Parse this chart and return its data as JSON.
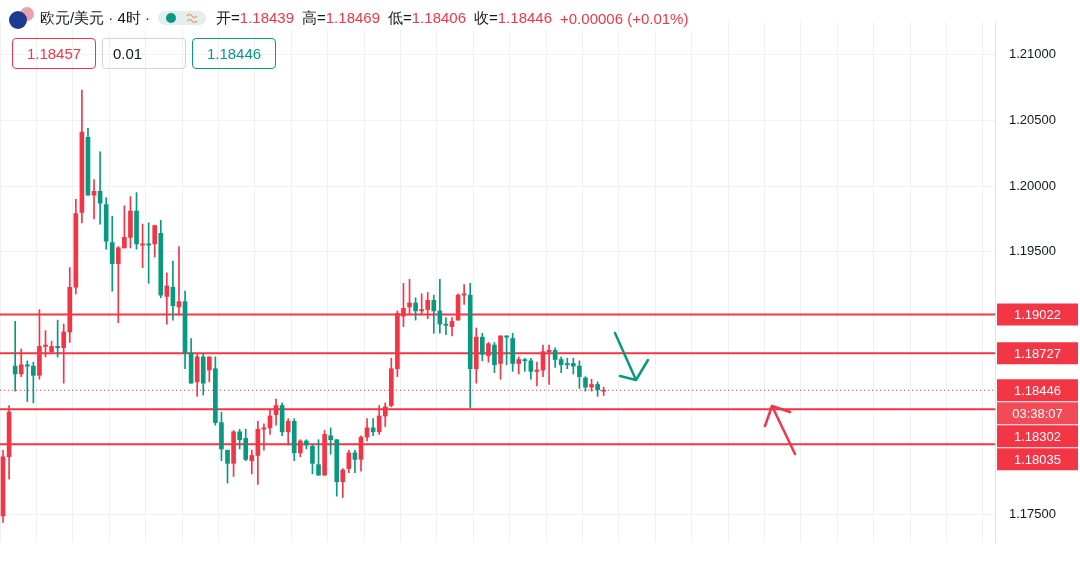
{
  "chart_data": {
    "type": "candlestick",
    "title": "欧元/美元 · 4时 ·",
    "categories": [
      null,
      null,
      null,
      null,
      null,
      null,
      null,
      null,
      null,
      null,
      null,
      null,
      null,
      null,
      null,
      null,
      null,
      null,
      null,
      null,
      null,
      null,
      null,
      null,
      null,
      null,
      null,
      null,
      null,
      null,
      null,
      null,
      null,
      null,
      null,
      null,
      null,
      null,
      null,
      null,
      null,
      null,
      null,
      null,
      null,
      null,
      null,
      null,
      null,
      null,
      null,
      null,
      null,
      null,
      null,
      null,
      null,
      null,
      null,
      null,
      null,
      null,
      null,
      null,
      null,
      null,
      null,
      null,
      null,
      null,
      null,
      null,
      null,
      null,
      null,
      null,
      null,
      null,
      null,
      null,
      null,
      null,
      null,
      null,
      null,
      null,
      null,
      null,
      null,
      null,
      null,
      null,
      null,
      null,
      null,
      null,
      null,
      null,
      null,
      null,
      null,
      null,
      null,
      null,
      null,
      null,
      null,
      null,
      null,
      null,
      null,
      null,
      null,
      null,
      null,
      null,
      null,
      null,
      null,
      null,
      null,
      null,
      null,
      null,
      null,
      null,
      null,
      null,
      null,
      null,
      null,
      null,
      null,
      null,
      null,
      null,
      null,
      null,
      null,
      null,
      null,
      null,
      null,
      null,
      null,
      null,
      null,
      null,
      null,
      null,
      null,
      null,
      null,
      null,
      null,
      null,
      null,
      null,
      null,
      null,
      null,
      null,
      null,
      null
    ],
    "ohlc": [
      [
        1.1749,
        1.1799,
        1.1744,
        1.1794
      ],
      [
        1.1794,
        1.1833,
        1.1777,
        1.1828
      ],
      [
        1.1863,
        1.1897,
        1.1844,
        1.1857
      ],
      [
        1.1857,
        1.1876,
        1.1855,
        1.1864
      ],
      [
        1.1864,
        1.1867,
        1.1836,
        1.1863
      ],
      [
        1.1863,
        1.1866,
        1.1835,
        1.1856
      ],
      [
        1.1856,
        1.1906,
        1.1853,
        1.1878
      ],
      [
        1.1878,
        1.189,
        1.187,
        1.1879
      ],
      [
        1.1874,
        1.1882,
        1.1873,
        1.1878
      ],
      [
        1.1878,
        1.1898,
        1.187,
        1.1877
      ],
      [
        1.1877,
        1.1895,
        1.185,
        1.1889
      ],
      [
        1.1889,
        1.1938,
        1.1881,
        1.1923
      ],
      [
        1.1923,
        1.199,
        1.1918,
        1.1979
      ],
      [
        1.198,
        1.2073,
        1.1972,
        1.2041
      ],
      [
        1.2037,
        1.2044,
        1.1993,
        1.1993
      ],
      [
        1.1993,
        1.2005,
        1.1975,
        1.1996
      ],
      [
        1.1996,
        1.2026,
        1.1971,
        1.1987
      ],
      [
        1.1986,
        1.1991,
        1.1952,
        1.1958
      ],
      [
        1.1957,
        1.1977,
        1.192,
        1.1941
      ],
      [
        1.1941,
        1.1954,
        1.1896,
        1.1953
      ],
      [
        1.1953,
        1.1985,
        1.1953,
        1.1961
      ],
      [
        1.1961,
        1.1992,
        1.1953,
        1.1981
      ],
      [
        1.1981,
        1.1995,
        1.1952,
        1.1956
      ],
      [
        1.1955,
        1.1971,
        1.1938,
        1.1956
      ],
      [
        1.1956,
        1.1972,
        1.1926,
        1.1955
      ],
      [
        1.1956,
        1.197,
        1.1946,
        1.197
      ],
      [
        1.1964,
        1.1974,
        1.1915,
        1.1917
      ],
      [
        1.1916,
        1.1934,
        1.1895,
        1.1924
      ],
      [
        1.1923,
        1.1943,
        1.1898,
        1.1909
      ],
      [
        1.1908,
        1.1954,
        1.1902,
        1.1912
      ],
      [
        1.1912,
        1.192,
        1.1861,
        1.1873
      ],
      [
        1.1873,
        1.1884,
        1.185,
        1.185
      ],
      [
        1.1851,
        1.1872,
        1.184,
        1.187
      ],
      [
        1.187,
        1.1872,
        1.1841,
        1.185
      ],
      [
        1.186,
        1.187,
        1.1851,
        1.187
      ],
      [
        1.1861,
        1.187,
        1.1818,
        1.182
      ],
      [
        1.182,
        1.1828,
        1.1791,
        1.18
      ],
      [
        1.1799,
        1.1799,
        1.1774,
        1.1789
      ],
      [
        1.1789,
        1.1814,
        1.1779,
        1.1813
      ],
      [
        1.1813,
        1.1815,
        1.18,
        1.1807
      ],
      [
        1.1808,
        1.1815,
        1.1791,
        1.1792
      ],
      [
        1.1791,
        1.1799,
        1.1781,
        1.1795
      ],
      [
        1.1795,
        1.1821,
        1.1773,
        1.1815
      ],
      [
        1.1815,
        1.1819,
        1.1799,
        1.1816
      ],
      [
        1.1816,
        1.183,
        1.1811,
        1.1825
      ],
      [
        1.1826,
        1.1838,
        1.1818,
        1.1833
      ],
      [
        1.1833,
        1.1835,
        1.181,
        1.1813
      ],
      [
        1.1813,
        1.1823,
        1.1803,
        1.1821
      ],
      [
        1.1821,
        1.1823,
        1.1791,
        1.1797
      ],
      [
        1.1797,
        1.1807,
        1.1794,
        1.1806
      ],
      [
        1.1806,
        1.1807,
        1.18,
        1.1803
      ],
      [
        1.1802,
        1.1803,
        1.1781,
        1.1789
      ],
      [
        1.1788,
        1.1807,
        1.178,
        1.178
      ],
      [
        1.178,
        1.1814,
        1.178,
        1.1811
      ],
      [
        1.181,
        1.1816,
        1.1796,
        1.1807
      ],
      [
        1.1807,
        1.1807,
        1.1764,
        1.1775
      ],
      [
        1.1775,
        1.1785,
        1.1763,
        1.1784
      ],
      [
        1.1785,
        1.1799,
        1.1782,
        1.1797
      ],
      [
        1.1797,
        1.1799,
        1.1782,
        1.1792
      ],
      [
        1.1792,
        1.181,
        1.1783,
        1.1809
      ],
      [
        1.1809,
        1.1823,
        1.1806,
        1.1816
      ],
      [
        1.1816,
        1.1823,
        1.181,
        1.1813
      ],
      [
        1.1813,
        1.1833,
        1.1811,
        1.1825
      ],
      [
        1.1825,
        1.1835,
        1.1817,
        1.1832
      ],
      [
        1.1833,
        1.1869,
        1.1832,
        1.1861
      ],
      [
        1.1861,
        1.1905,
        1.1855,
        1.1903
      ],
      [
        1.1901,
        1.1926,
        1.1893,
        1.1907
      ],
      [
        1.1908,
        1.1929,
        1.1902,
        1.1911
      ],
      [
        1.1911,
        1.1915,
        1.1898,
        1.1905
      ],
      [
        1.1905,
        1.1918,
        1.1902,
        1.1906
      ],
      [
        1.1906,
        1.1919,
        1.1899,
        1.1913
      ],
      [
        1.1913,
        1.1917,
        1.1888,
        1.1905
      ],
      [
        1.1905,
        1.1929,
        1.1888,
        1.1895
      ],
      [
        1.1895,
        1.19,
        1.1887,
        1.1894
      ],
      [
        1.1893,
        1.19,
        1.1886,
        1.1897
      ],
      [
        1.1898,
        1.1918,
        1.1898,
        1.1917
      ],
      [
        1.1917,
        1.1925,
        1.191,
        1.1918
      ],
      [
        1.1917,
        1.1926,
        1.1831,
        1.1861
      ],
      [
        1.1861,
        1.1892,
        1.185,
        1.1885
      ],
      [
        1.1885,
        1.1888,
        1.1867,
        1.1872
      ],
      [
        1.1871,
        1.1881,
        1.1866,
        1.188
      ],
      [
        1.1879,
        1.1881,
        1.1858,
        1.1864
      ],
      [
        1.1865,
        1.1886,
        1.1853,
        1.1886
      ],
      [
        1.1886,
        1.1886,
        1.1864,
        1.1885
      ],
      [
        1.1884,
        1.1888,
        1.1859,
        1.1865
      ],
      [
        1.1865,
        1.187,
        1.1857,
        1.1868
      ],
      [
        1.1868,
        1.1869,
        1.1859,
        1.1867
      ],
      [
        1.1867,
        1.1869,
        1.1853,
        1.1859
      ],
      [
        1.1859,
        1.1866,
        1.1848,
        1.186
      ],
      [
        1.186,
        1.1879,
        1.1855,
        1.1874
      ],
      [
        1.1874,
        1.1879,
        1.1849,
        1.1875
      ],
      [
        1.1875,
        1.1877,
        1.1862,
        1.1868
      ],
      [
        1.1868,
        1.187,
        1.1858,
        1.1864
      ],
      [
        1.1865,
        1.1869,
        1.1861,
        1.1864
      ],
      [
        1.1865,
        1.1869,
        1.1857,
        1.1863
      ],
      [
        1.1863,
        1.1867,
        1.1846,
        1.1855
      ],
      [
        1.1854,
        1.1855,
        1.1844,
        1.1847
      ],
      [
        1.1847,
        1.1853,
        1.1844,
        1.1849
      ],
      [
        1.1849,
        1.1851,
        1.184,
        1.1845
      ],
      [
        1.18439,
        1.18469,
        1.18406,
        1.18446
      ],
      null,
      null,
      null,
      null,
      null,
      null,
      null,
      null,
      null,
      null,
      null,
      null,
      null,
      null,
      null,
      null,
      null,
      null,
      null,
      null,
      null,
      null,
      null,
      null,
      null,
      null,
      null,
      null,
      null,
      null,
      null,
      null,
      null,
      null,
      null,
      null,
      null,
      null,
      null,
      null,
      null,
      null,
      null,
      null,
      null,
      null,
      null,
      null,
      null,
      null,
      null,
      null,
      null,
      null,
      null,
      null,
      null,
      null,
      null,
      null,
      null,
      null,
      null,
      null
    ],
    "colors": [
      "#f23645",
      "#f23645",
      "#089981",
      "#f23645",
      "#089981",
      "#089981",
      "#f23645",
      "#f23645",
      "#f23645",
      "#089981",
      "#f23645",
      "#f23645",
      "#f23645",
      "#f23645",
      "#089981",
      "#f23645",
      "#089981",
      "#089981",
      "#089981",
      "#f23645",
      "#f23645",
      "#f23645",
      "#089981",
      "#f23645",
      "#089981",
      "#f23645",
      "#089981",
      "#f23645",
      "#089981",
      "#f23645",
      "#089981",
      "#089981",
      "#f23645",
      "#089981",
      "#f23645",
      "#089981",
      "#089981",
      "#089981",
      "#f23645",
      "#089981",
      "#089981",
      "#f23645",
      "#f23645",
      "#f23645",
      "#f23645",
      "#f23645",
      "#089981",
      "#f23645",
      "#089981",
      "#f23645",
      "#089981",
      "#089981",
      "#089981",
      "#f23645",
      "#089981",
      "#089981",
      "#f23645",
      "#f23645",
      "#089981",
      "#f23645",
      "#f23645",
      "#089981",
      "#f23645",
      "#f23645",
      "#f23645",
      "#f23645",
      "#f23645",
      "#f23645",
      "#089981",
      "#f23645",
      "#f23645",
      "#089981",
      "#089981",
      "#089981",
      "#f23645",
      "#f23645",
      "#f23645",
      "#089981",
      "#f23645",
      "#089981",
      "#f23645",
      "#089981",
      "#f23645",
      "#089981",
      "#089981",
      "#f23645",
      "#089981",
      "#089981",
      "#f23645",
      "#f23645",
      "#f23645",
      "#089981",
      "#089981",
      "#089981",
      "#089981",
      "#089981",
      "#089981",
      "#f23645",
      "#089981",
      "#f23645",
      null,
      null,
      null,
      null,
      null,
      null,
      null,
      null,
      null,
      null,
      null,
      null,
      null,
      null,
      null,
      null,
      null,
      null,
      null,
      null,
      null,
      null,
      null,
      null,
      null,
      null,
      null,
      null,
      null,
      null,
      null,
      null,
      null,
      null,
      null,
      null,
      null,
      null,
      null,
      null,
      null,
      null,
      null,
      null,
      null,
      null,
      null,
      null,
      null,
      null,
      null,
      null,
      null,
      null,
      null,
      null,
      null,
      null,
      null,
      null,
      null,
      null,
      null,
      null
    ],
    "ylim": [
      1.1729,
      1.2125
    ],
    "yticks": [
      {
        "value": 1.175,
        "label": "1.17500"
      },
      {
        "value": 1.195,
        "label": "1.19500"
      },
      {
        "value": 1.2,
        "label": "1.20000"
      },
      {
        "value": 1.205,
        "label": "1.20500"
      },
      {
        "value": 1.21,
        "label": "1.21000"
      }
    ],
    "tick_labels": "y",
    "grid": true,
    "legend": false,
    "ref_lines": [
      {
        "axis": "y",
        "value": 1.19022,
        "label": "1.19022",
        "color": "#f23645",
        "line_style": "solid"
      },
      {
        "axis": "y",
        "value": 1.18727,
        "label": "1.18727",
        "color": "#f23645",
        "line_style": "solid"
      },
      {
        "axis": "y",
        "value": 1.18302,
        "label": "1.18302",
        "color": "#f23645",
        "line_style": "solid"
      },
      {
        "axis": "y",
        "value": 1.18035,
        "label": "1.18035",
        "color": "#f23645",
        "line_style": "solid"
      },
      {
        "axis": "y",
        "value": 1.18446,
        "label": "1.18446",
        "color": "#f23645",
        "line_style": "dotted"
      }
    ],
    "annotations": [
      "开=1.18439",
      "高=1.18469",
      "低=1.18406",
      "收=1.18446",
      "+0.00006 (+0.01%)",
      "1.18457",
      "0.01",
      "1.18446",
      "03:38:07"
    ]
  }
}
